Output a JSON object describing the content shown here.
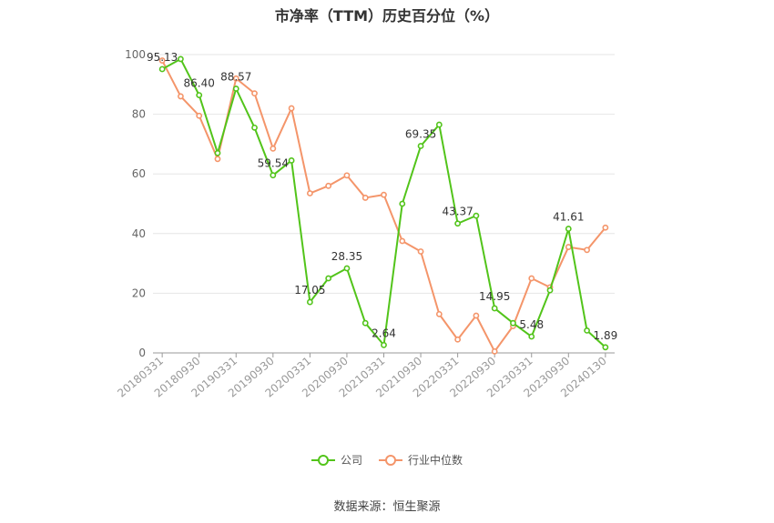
{
  "title": "市净率（TTM）历史百分位（%）",
  "source": "数据来源：恒生聚源",
  "colors": {
    "company": "#52c41a",
    "industry": "#f4956a",
    "grid": "#e6e6e6",
    "axis": "#999999"
  },
  "chart_data": {
    "type": "line",
    "title": "市净率（TTM）历史百分位（%）",
    "ylim": [
      0,
      100
    ],
    "y_ticks": [
      0,
      20,
      40,
      60,
      80,
      100
    ],
    "grid": true,
    "legend": "bottom-center",
    "categories": [
      "20180331",
      "20180630",
      "20180930",
      "20181231",
      "20190331",
      "20190630",
      "20190930",
      "20191231",
      "20200331",
      "20200630",
      "20200930",
      "20201231",
      "20210331",
      "20210630",
      "20210930",
      "20211231",
      "20220331",
      "20220630",
      "20220930",
      "20221231",
      "20230331",
      "20230630",
      "20230930",
      "20231231",
      "20240130"
    ],
    "x_tick_labels": [
      "20180331",
      "20180930",
      "20190331",
      "20190930",
      "20200331",
      "20200930",
      "20210331",
      "20210930",
      "20220331",
      "20220930",
      "20230331",
      "20230930",
      "20240130"
    ],
    "series": [
      {
        "name": "公司",
        "color": "#52c41a",
        "values": [
          95.13,
          98.5,
          86.4,
          67.0,
          88.57,
          75.5,
          59.54,
          64.5,
          17.05,
          25.0,
          28.35,
          10.0,
          2.64,
          50.0,
          69.35,
          76.5,
          43.37,
          46.0,
          14.95,
          10.0,
          5.48,
          21.0,
          41.61,
          7.5,
          1.89
        ],
        "labels": [
          "95.13",
          null,
          "86.40",
          null,
          "88.57",
          null,
          "59.54",
          null,
          "17.05",
          null,
          "28.35",
          null,
          "2.64",
          null,
          "69.35",
          null,
          "43.37",
          null,
          "14.95",
          null,
          "5.48",
          null,
          "41.61",
          null,
          "1.89"
        ]
      },
      {
        "name": "行业中位数",
        "color": "#f4956a",
        "values": [
          98.0,
          86.0,
          79.5,
          65.0,
          92.0,
          87.0,
          68.5,
          82.0,
          53.5,
          56.0,
          59.5,
          52.0,
          53.0,
          37.5,
          34.0,
          13.0,
          4.5,
          12.5,
          0.5,
          9.0,
          25.0,
          22.0,
          35.5,
          34.5,
          42.0
        ]
      }
    ]
  }
}
